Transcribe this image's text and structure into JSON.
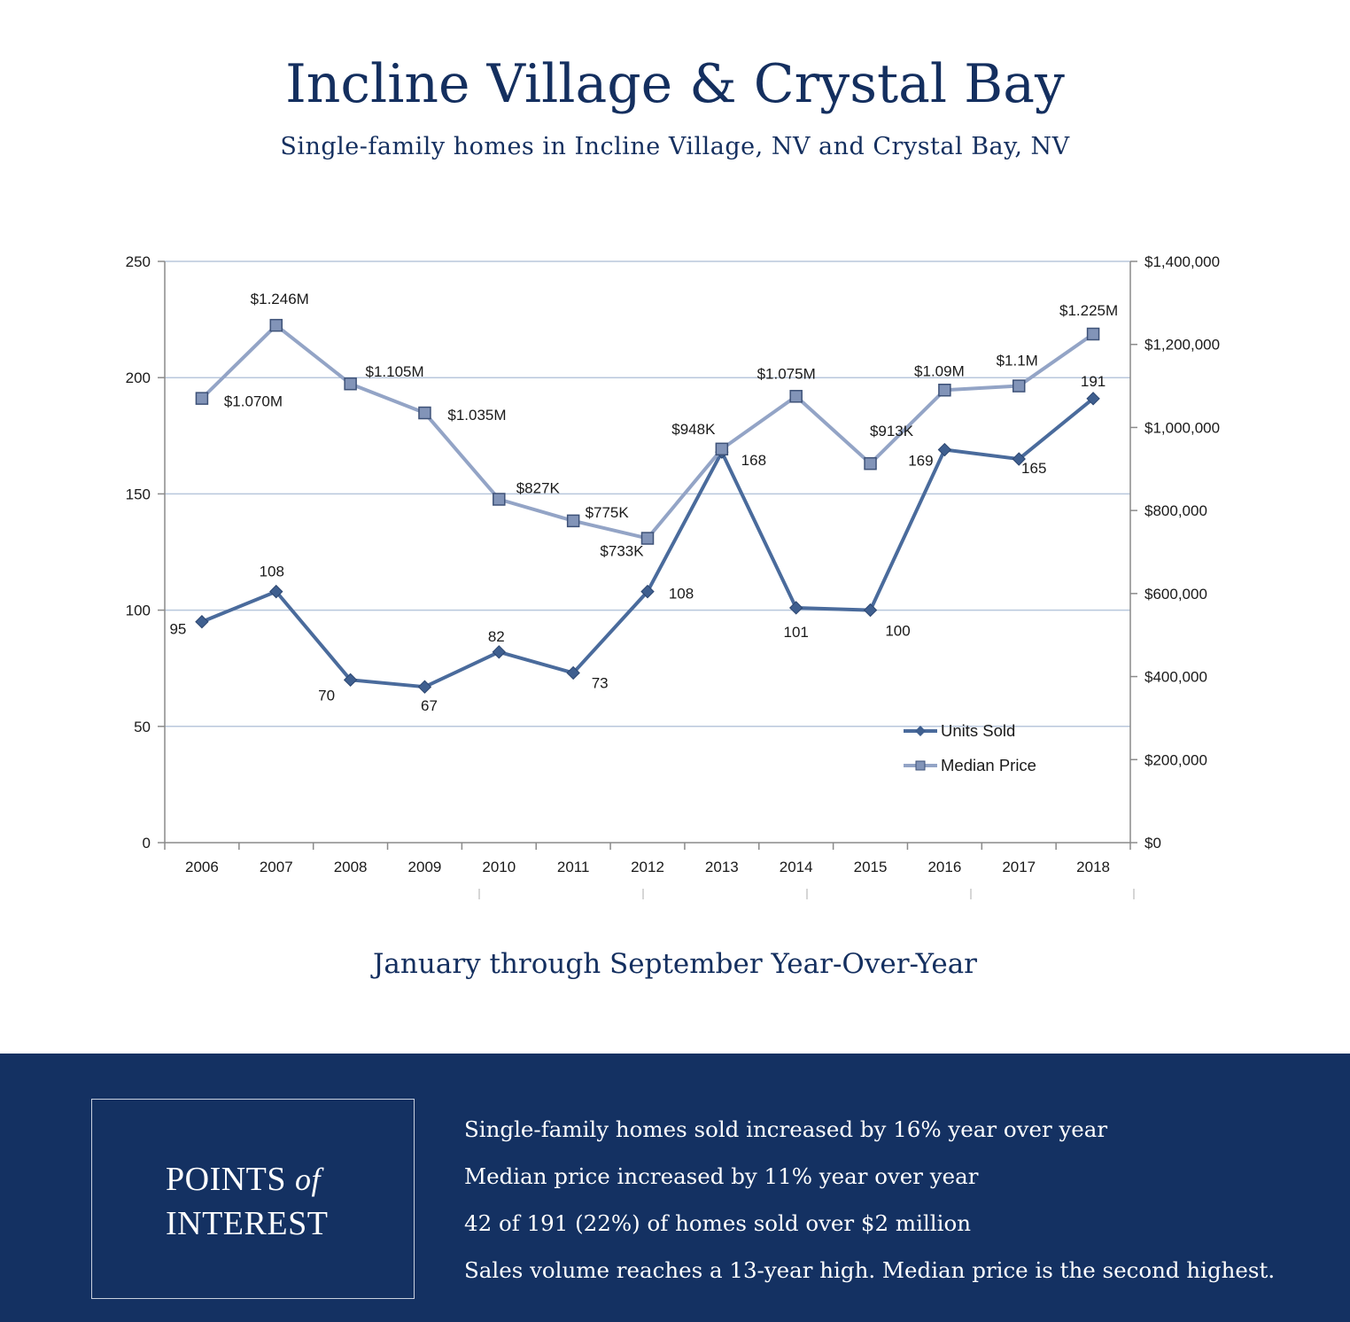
{
  "header": {
    "title": "Incline Village & Crystal Bay",
    "subtitle": "Single-family homes in Incline Village, NV and Crystal Bay, NV"
  },
  "chart_data": {
    "type": "line",
    "title": "",
    "categories": [
      "2006",
      "2007",
      "2008",
      "2009",
      "2010",
      "2011",
      "2012",
      "2013",
      "2014",
      "2015",
      "2016",
      "2017",
      "2018"
    ],
    "left_axis": {
      "range": [
        0,
        250
      ],
      "ticks": [
        0,
        50,
        100,
        150,
        200,
        250
      ],
      "tick_labels": [
        "0",
        "50",
        "100",
        "150",
        "200",
        "250"
      ]
    },
    "right_axis": {
      "range": [
        0,
        1400000
      ],
      "ticks": [
        0,
        200000,
        400000,
        600000,
        800000,
        1000000,
        1200000,
        1400000
      ],
      "tick_labels": [
        "$0",
        "$200,000",
        "$400,000",
        "$600,000",
        "$800,000",
        "$1,000,000",
        "$1,200,000",
        "$1,400,000"
      ]
    },
    "grid": true,
    "legend_position": "bottom-right",
    "series": [
      {
        "name": "Units Sold",
        "axis": "left",
        "color": "#4a6b9c",
        "marker": "diamond",
        "values": [
          95,
          108,
          70,
          67,
          82,
          73,
          108,
          168,
          101,
          100,
          169,
          165,
          191
        ],
        "labels": [
          "95",
          "108",
          "70",
          "67",
          "82",
          "73",
          "108",
          "168",
          "101",
          "100",
          "169",
          "165",
          "191"
        ]
      },
      {
        "name": "Median Price",
        "axis": "right",
        "color": "#93a4c6",
        "marker": "square",
        "values": [
          1070000,
          1246000,
          1105000,
          1035000,
          827000,
          775000,
          733000,
          948000,
          1075000,
          913000,
          1090000,
          1100000,
          1225000
        ],
        "labels": [
          "$1.070M",
          "$1.246M",
          "$1.105M",
          "$1.035M",
          "$827K",
          "$775K",
          "$733K",
          "$948K",
          "$1.075M",
          "$913K",
          "$1.09M",
          "$1.1M",
          "$1.225M"
        ]
      }
    ]
  },
  "period_label": "January through September Year-Over-Year",
  "points_of_interest": {
    "heading_line1_part1": "POINTS",
    "heading_line1_part2": "of",
    "heading_line2": "INTEREST",
    "items": [
      "Single-family homes sold increased by 16% year over year",
      "Median price increased by 11% year over year",
      "42 of 191 (22%) of homes sold over $2 million",
      "Sales volume reaches a 13-year high. Median price is the second highest."
    ]
  }
}
